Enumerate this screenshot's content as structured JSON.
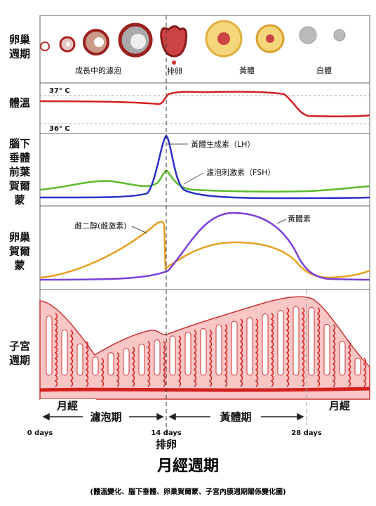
{
  "ovary": {
    "label": [
      "卵巢",
      "週期"
    ],
    "stages": [
      "成長中的濾泡",
      "排卵",
      "黃體",
      "白體"
    ]
  },
  "temperature": {
    "label": [
      "體溫"
    ],
    "ticks": [
      "37° C",
      "36° C"
    ]
  },
  "pituitary": {
    "label": [
      "腦下",
      "垂體",
      "前葉",
      "賀爾",
      "蒙"
    ],
    "curves": [
      "黃體生成素（LH）",
      "濾泡刺激素（FSH）"
    ]
  },
  "ovarian_hormones": {
    "label": [
      "卵巢",
      "賀爾",
      "蒙"
    ],
    "curves": [
      "雌二醇(雌激素)",
      "黃體素"
    ]
  },
  "uterus": {
    "label": [
      "子宮",
      "週期"
    ],
    "menses": [
      "月經",
      "月經"
    ],
    "phases": [
      "濾泡期",
      "黃體期"
    ]
  },
  "axis": {
    "days": [
      "0 days",
      "14 days",
      "28 days"
    ],
    "ovulation": "排卵"
  },
  "title": "月經週期",
  "subtitle": "(體溫變化、腦下垂體、卵巢賀爾蒙、子宮內膜週期關係變化圖)"
}
